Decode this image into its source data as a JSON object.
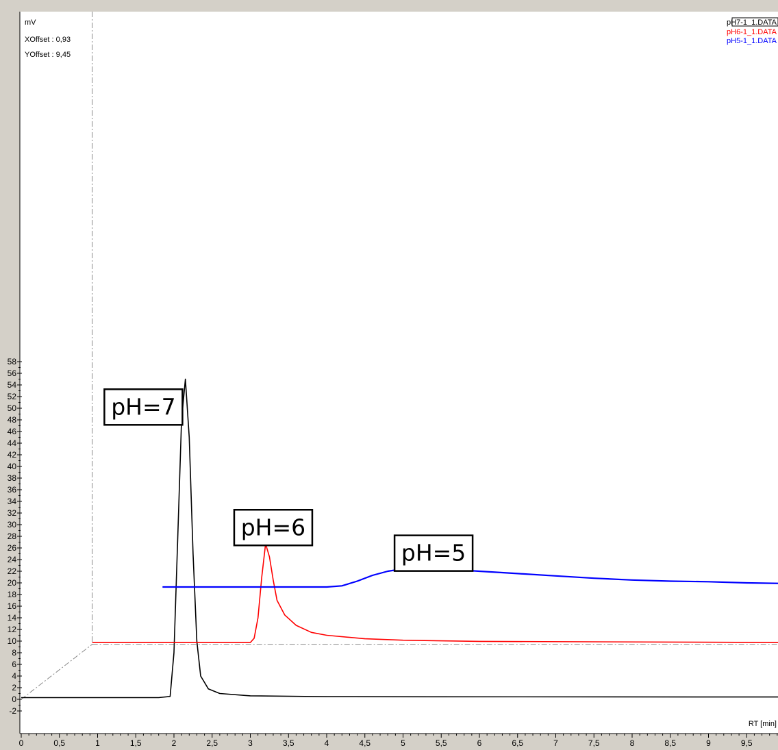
{
  "chart_data": {
    "type": "line",
    "units_label": "mV",
    "xlabel": "RT [min]",
    "offsets": [
      {
        "label": "XOffset : 0,93"
      },
      {
        "label": "YOffset : 9,45"
      }
    ],
    "x_ticks": [
      "0",
      "0,5",
      "1",
      "1,5",
      "2",
      "2,5",
      "3",
      "3,5",
      "4",
      "4,5",
      "5",
      "5,5",
      "6",
      "6,5",
      "7",
      "7,5",
      "8",
      "8,5",
      "9",
      "9,5",
      "10"
    ],
    "y_ticks": [
      "-2",
      "0",
      "2",
      "4",
      "6",
      "8",
      "10",
      "12",
      "14",
      "16",
      "18",
      "20",
      "22",
      "24",
      "26",
      "28",
      "30",
      "32",
      "34",
      "36",
      "38",
      "40",
      "42",
      "44",
      "46",
      "48",
      "50",
      "52",
      "54",
      "56",
      "58"
    ],
    "xlim": [
      0,
      10
    ],
    "ylim": [
      -2.6,
      59
    ],
    "x_offset": 0.93,
    "y_offset": 9.45,
    "legend": [
      {
        "name": "pH7-1_1.DATA",
        "color": "#000000"
      },
      {
        "name": "pH6-1_1.DATA",
        "color": "#ff0000"
      },
      {
        "name": "pH5-1_1.DATA",
        "color": "#0000ff"
      }
    ],
    "series": [
      {
        "name": "pH7-1_1.DATA",
        "color": "#000000",
        "x": [
          0.0,
          1.8,
          1.95,
          2.0,
          2.05,
          2.1,
          2.15,
          2.2,
          2.25,
          2.3,
          2.35,
          2.45,
          2.6,
          3.0,
          4.0,
          10.0
        ],
        "y": [
          0.3,
          0.3,
          0.5,
          8.0,
          28.0,
          48.0,
          55.0,
          45.0,
          25.0,
          10.0,
          4.0,
          1.8,
          1.0,
          0.6,
          0.45,
          0.4
        ]
      },
      {
        "name": "pH6-1_1.DATA",
        "color": "#ff0000",
        "x": [
          0.93,
          3.0,
          3.05,
          3.1,
          3.15,
          3.2,
          3.25,
          3.3,
          3.35,
          3.45,
          3.6,
          3.8,
          4.0,
          4.5,
          5.0,
          6.0,
          10.0
        ],
        "y": [
          9.75,
          9.75,
          10.5,
          14.0,
          21.0,
          26.7,
          24.5,
          20.5,
          17.0,
          14.5,
          12.7,
          11.5,
          11.0,
          10.4,
          10.15,
          9.95,
          9.75
        ]
      },
      {
        "name": "pH5-1_1.DATA",
        "color": "#0000ff",
        "x": [
          1.85,
          3.2,
          3.5,
          4.0,
          4.2,
          4.4,
          4.6,
          4.8,
          5.0,
          5.25,
          5.5,
          6.0,
          6.5,
          7.0,
          7.5,
          8.0,
          8.5,
          9.0,
          9.5,
          10.0
        ],
        "y": [
          19.3,
          19.3,
          19.3,
          19.3,
          19.5,
          20.3,
          21.3,
          22.0,
          22.4,
          22.5,
          22.4,
          22.0,
          21.6,
          21.2,
          20.8,
          20.5,
          20.3,
          20.2,
          20.0,
          19.9
        ]
      }
    ],
    "annotations": [
      {
        "text": "pH=7",
        "x": 1.6,
        "y": 50.2
      },
      {
        "text": "pH=6",
        "x": 3.3,
        "y": 29.5
      },
      {
        "text": "pH=5",
        "x": 5.4,
        "y": 25.1
      }
    ],
    "grid": false,
    "legend_position": "top-right"
  }
}
